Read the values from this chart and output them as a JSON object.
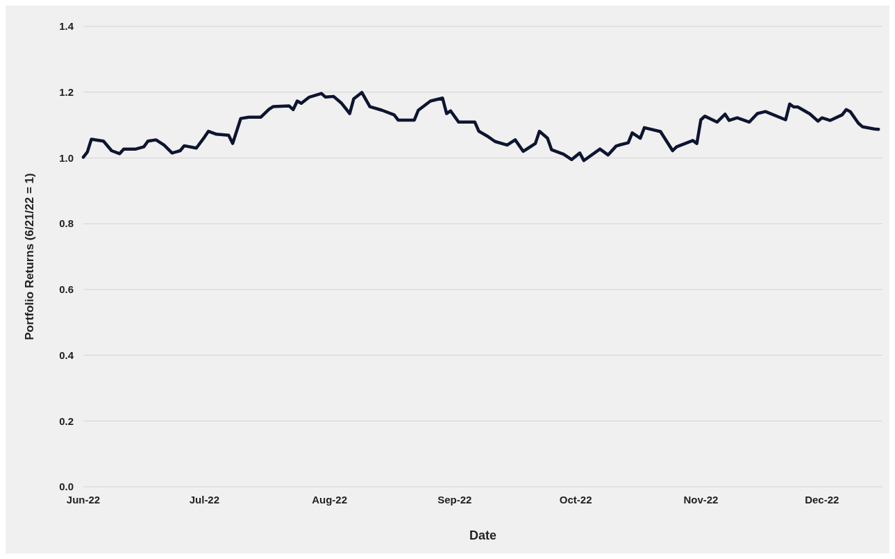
{
  "chart_data": {
    "type": "line",
    "xlabel": "Date",
    "ylabel": "Portfolio Returns (6/21/22 = 1)",
    "xlim": [
      "2022-06-21",
      "2023-01-05"
    ],
    "xticks": [
      {
        "value": "2022-06-21",
        "label": "Jun-22"
      },
      {
        "value": "2022-07-21",
        "label": "Jul-22"
      },
      {
        "value": "2022-08-21",
        "label": "Aug-22"
      },
      {
        "value": "2022-09-21",
        "label": "Sep-22"
      },
      {
        "value": "2022-10-21",
        "label": "Oct-22"
      },
      {
        "value": "2022-11-21",
        "label": "Nov-22"
      },
      {
        "value": "2022-12-21",
        "label": "Dec-22"
      }
    ],
    "ylim": [
      0,
      1.4
    ],
    "yticks": [
      {
        "value": 0,
        "label": "0.0"
      },
      {
        "value": 0.2,
        "label": "0.2"
      },
      {
        "value": 0.4,
        "label": "0.4"
      },
      {
        "value": 0.6,
        "label": "0.6"
      },
      {
        "value": 0.8,
        "label": "0.8"
      },
      {
        "value": 1,
        "label": "1.0"
      },
      {
        "value": 1.2,
        "label": "1.2"
      },
      {
        "value": 1.4,
        "label": "1.4"
      }
    ],
    "grid": "y",
    "marker": "none",
    "line_style": "solid",
    "x": [
      "2022-06-21",
      "2022-06-22",
      "2022-06-23",
      "2022-06-26",
      "2022-06-28",
      "2022-06-30",
      "2022-07-01",
      "2022-07-04",
      "2022-07-06",
      "2022-07-07",
      "2022-07-09",
      "2022-07-11",
      "2022-07-13",
      "2022-07-15",
      "2022-07-16",
      "2022-07-19",
      "2022-07-21",
      "2022-07-22",
      "2022-07-24",
      "2022-07-27",
      "2022-07-28",
      "2022-07-30",
      "2022-08-01",
      "2022-08-04",
      "2022-08-06",
      "2022-08-07",
      "2022-08-11",
      "2022-08-12",
      "2022-08-13",
      "2022-08-14",
      "2022-08-16",
      "2022-08-19",
      "2022-08-20",
      "2022-08-22",
      "2022-08-24",
      "2022-08-26",
      "2022-08-27",
      "2022-08-29",
      "2022-08-31",
      "2022-09-03",
      "2022-09-06",
      "2022-09-07",
      "2022-09-11",
      "2022-09-12",
      "2022-09-15",
      "2022-09-18",
      "2022-09-19",
      "2022-09-20",
      "2022-09-22",
      "2022-09-26",
      "2022-09-27",
      "2022-09-29",
      "2022-10-01",
      "2022-10-04",
      "2022-10-06",
      "2022-10-08",
      "2022-10-11",
      "2022-10-12",
      "2022-10-14",
      "2022-10-15",
      "2022-10-18",
      "2022-10-20",
      "2022-10-22",
      "2022-10-23",
      "2022-10-27",
      "2022-10-29",
      "2022-10-31",
      "2022-11-01",
      "2022-11-03",
      "2022-11-04",
      "2022-11-06",
      "2022-11-07",
      "2022-11-11",
      "2022-11-14",
      "2022-11-15",
      "2022-11-19",
      "2022-11-20",
      "2022-11-21",
      "2022-11-22",
      "2022-11-25",
      "2022-11-27",
      "2022-11-28",
      "2022-11-30",
      "2022-12-03",
      "2022-12-05",
      "2022-12-07",
      "2022-12-12",
      "2022-12-13",
      "2022-12-14",
      "2022-12-15",
      "2022-12-18",
      "2022-12-20",
      "2022-12-21",
      "2022-12-23",
      "2022-12-26",
      "2022-12-27",
      "2022-12-28",
      "2022-12-30",
      "2022-12-31",
      "2023-01-03",
      "2023-01-04"
    ],
    "series": [
      {
        "color": "#0d1530",
        "values": [
          1.002,
          1.018,
          1.057,
          1.051,
          1.022,
          1.013,
          1.027,
          1.027,
          1.034,
          1.051,
          1.055,
          1.039,
          1.015,
          1.022,
          1.037,
          1.03,
          1.063,
          1.081,
          1.072,
          1.069,
          1.044,
          1.12,
          1.124,
          1.124,
          1.148,
          1.156,
          1.158,
          1.147,
          1.173,
          1.166,
          1.185,
          1.196,
          1.185,
          1.187,
          1.166,
          1.135,
          1.18,
          1.199,
          1.156,
          1.145,
          1.131,
          1.115,
          1.115,
          1.145,
          1.173,
          1.182,
          1.135,
          1.143,
          1.109,
          1.109,
          1.081,
          1.067,
          1.05,
          1.039,
          1.055,
          1.02,
          1.044,
          1.081,
          1.06,
          1.025,
          1.011,
          0.995,
          1.015,
          0.992,
          1.027,
          1.009,
          1.036,
          1.04,
          1.046,
          1.076,
          1.06,
          1.092,
          1.08,
          1.022,
          1.034,
          1.053,
          1.044,
          1.116,
          1.127,
          1.109,
          1.133,
          1.114,
          1.122,
          1.109,
          1.135,
          1.141,
          1.116,
          1.164,
          1.155,
          1.155,
          1.134,
          1.112,
          1.122,
          1.114,
          1.131,
          1.147,
          1.141,
          1.106,
          1.095,
          1.088,
          1.087
        ]
      }
    ]
  }
}
